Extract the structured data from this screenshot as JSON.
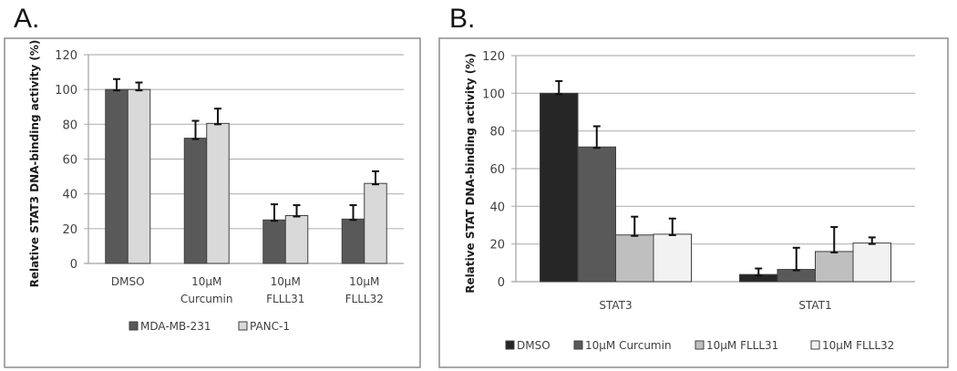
{
  "panels": [
    {
      "letter": "A.",
      "chart_data": {
        "type": "bar",
        "title": "",
        "xlabel": "",
        "ylabel": "Relative STAT3 DNA-binding activity (%)",
        "ylim": [
          0,
          120
        ],
        "yticks": [
          0,
          20,
          40,
          60,
          80,
          100,
          120
        ],
        "grid": true,
        "legend_position": "bottom",
        "categories": [
          [
            "DMSO"
          ],
          [
            "10µM",
            "Curcumin"
          ],
          [
            "10µM",
            "FLLL31"
          ],
          [
            "10µM",
            "FLLL32"
          ]
        ],
        "series": [
          {
            "name": "MDA-MB-231",
            "color": "#595959",
            "values": [
              100,
              72,
              25,
              25.5
            ],
            "error_upper": [
              106,
              82,
              34,
              33.5
            ]
          },
          {
            "name": "PANC-1",
            "color": "#d9d9d9",
            "values": [
              100,
              80.5,
              27.5,
              46
            ],
            "error_upper": [
              104,
              89,
              33.5,
              53
            ]
          }
        ]
      }
    },
    {
      "letter": "B.",
      "chart_data": {
        "type": "bar",
        "title": "",
        "xlabel": "",
        "ylabel": "Relative STAT DNA-binding activity (%)",
        "ylim": [
          0,
          120
        ],
        "yticks": [
          0,
          20,
          40,
          60,
          80,
          100,
          120
        ],
        "grid": true,
        "legend_position": "bottom",
        "categories": [
          [
            "STAT3"
          ],
          [
            "STAT1"
          ]
        ],
        "series": [
          {
            "name": "DMSO",
            "color": "#262626",
            "values": [
              100,
              3.8
            ],
            "error_upper": [
              106.5,
              7
            ]
          },
          {
            "name": "10µM Curcumin",
            "color": "#595959",
            "values": [
              71.5,
              6.5
            ],
            "error_upper": [
              82.5,
              18
            ]
          },
          {
            "name": "10µM FLLL31",
            "color": "#bfbfbf",
            "values": [
              24.8,
              16
            ],
            "error_upper": [
              34.5,
              29
            ]
          },
          {
            "name": "10µM FLLL32",
            "color": "#f2f2f2",
            "values": [
              25.2,
              20.5
            ],
            "error_upper": [
              33.5,
              23.5
            ]
          }
        ]
      }
    }
  ]
}
